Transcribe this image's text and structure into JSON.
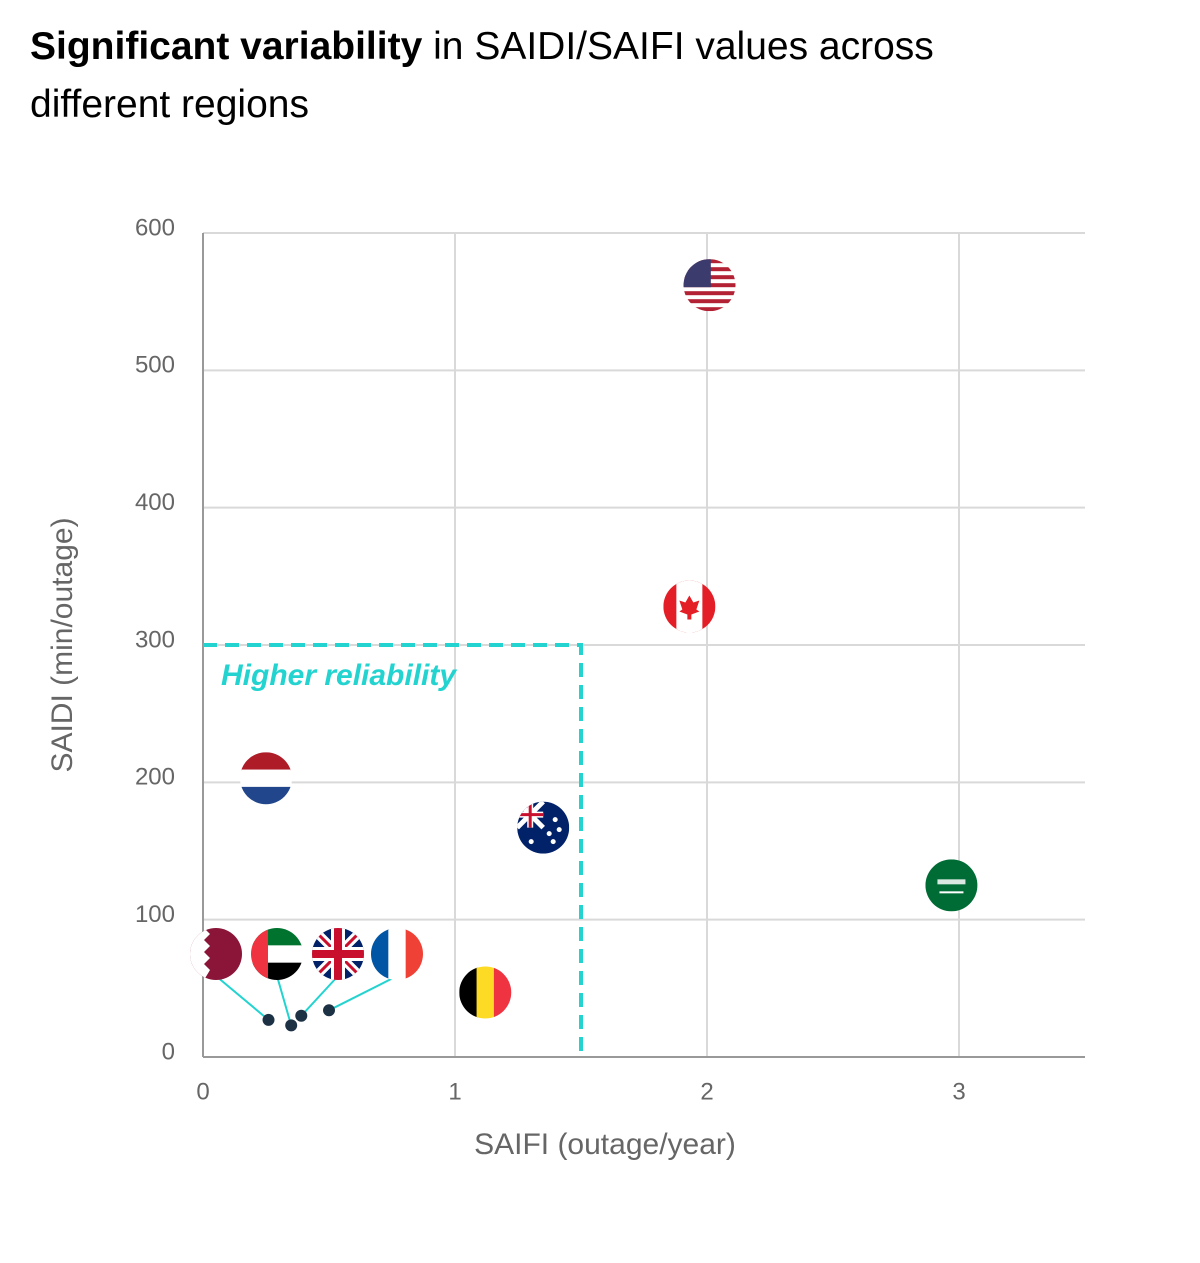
{
  "chart_data": {
    "type": "scatter",
    "title_bold": "Significant variability",
    "title_rest": "in SAIDI/SAIFI values across different regions",
    "x_label": "SAIFI (outage/year)",
    "y_label": "SAIDI (min/outage)",
    "x": [
      2.01,
      1.93,
      0.25,
      1.35,
      2.97,
      1.12,
      0.26,
      0.35,
      0.39,
      0.5
    ],
    "values": [
      562,
      328,
      203,
      167,
      125,
      47,
      27,
      23,
      30,
      34
    ],
    "xlim": [
      0,
      3.5
    ],
    "ylim": [
      0,
      600
    ],
    "xticks": [
      0,
      1,
      2,
      3
    ],
    "yticks": [
      0,
      100,
      200,
      300,
      400,
      500,
      600
    ],
    "grid": true,
    "reliability_box": {
      "x": 1.5,
      "y": 300,
      "label": "Higher reliability",
      "color": "#22d3d0"
    }
  }
}
